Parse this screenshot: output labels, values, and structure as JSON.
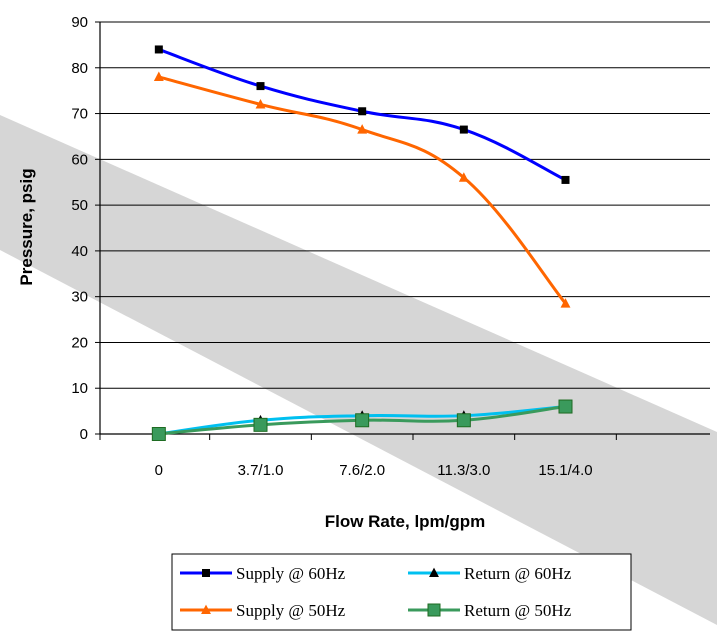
{
  "chart_data": {
    "type": "line",
    "title": "",
    "xlabel": "Flow Rate, lpm/gpm",
    "ylabel": "Pressure, psig",
    "categories": [
      "0",
      "3.7/1.0",
      "7.6/2.0",
      "11.3/3.0",
      "15.1/4.0"
    ],
    "ylim": [
      0,
      90
    ],
    "yticks": [
      0,
      10,
      20,
      30,
      40,
      50,
      60,
      70,
      80,
      90
    ],
    "grid": true,
    "legend_position": "bottom",
    "series": [
      {
        "name": "Supply @ 60Hz",
        "values": [
          84,
          76,
          70.5,
          66.5,
          55.5
        ],
        "color": "#0000ff",
        "marker": "square"
      },
      {
        "name": "Return @ 60Hz",
        "values": [
          0,
          3,
          4,
          4,
          6
        ],
        "color": "#00c0f0",
        "marker": "triangle"
      },
      {
        "name": "Supply @ 50Hz",
        "values": [
          78,
          72,
          66.5,
          56,
          28.5
        ],
        "color": "#ff6600",
        "marker": "triangle"
      },
      {
        "name": "Return @ 50Hz",
        "values": [
          0,
          2,
          3,
          3,
          6
        ],
        "color": "#3a9a5c",
        "marker": "square"
      }
    ]
  }
}
